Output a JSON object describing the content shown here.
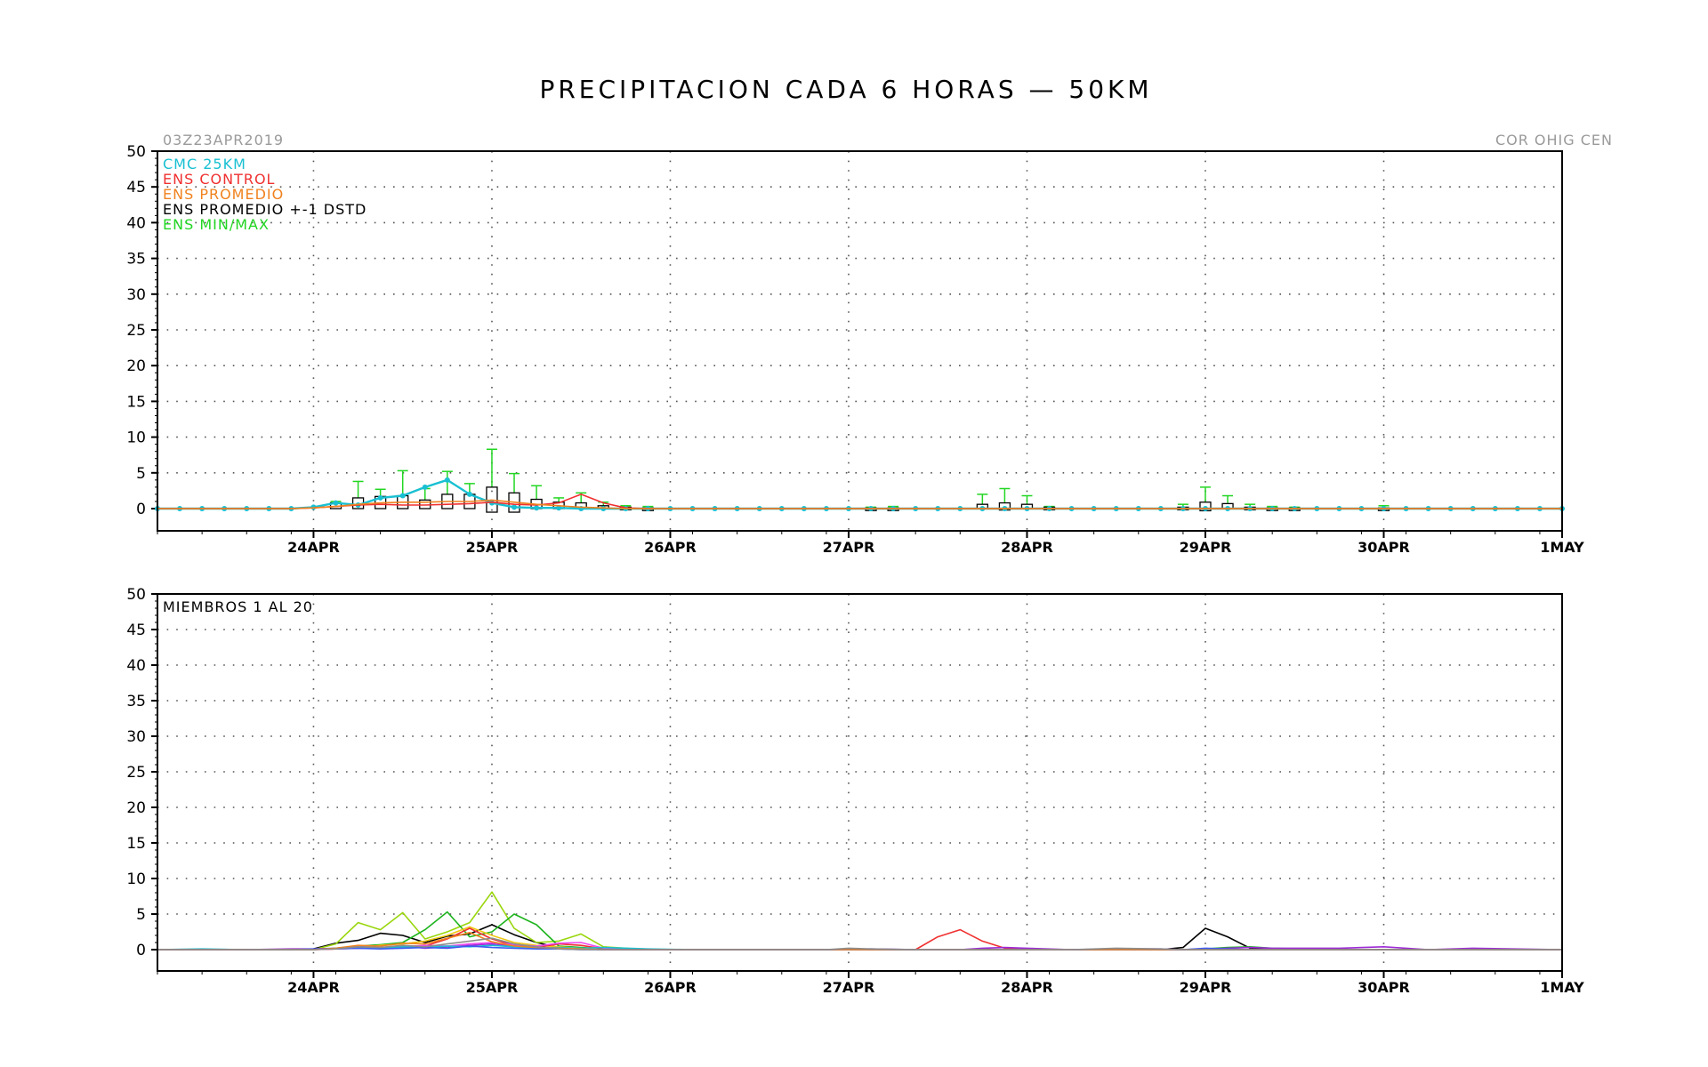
{
  "title": "PRECIPITACION CADA 6 HORAS — 50KM",
  "run_label": "03Z23APR2019",
  "center_label": "COR OHIG CEN",
  "colors": {
    "cmc": "#19c0d2",
    "control": "#f03030",
    "promedio": "#f0821e",
    "dstd": "#000000",
    "minmax": "#22d622",
    "axis": "#000000"
  },
  "chart_data": [
    {
      "type": "line",
      "panel": "ensemble-summary",
      "ylim": [
        -3,
        50
      ],
      "yticks": [
        0,
        5,
        10,
        15,
        20,
        25,
        30,
        35,
        40,
        45,
        50
      ],
      "xlim_hours": [
        0,
        189
      ],
      "xticks": [
        {
          "label": "24APR",
          "hour": 21
        },
        {
          "label": "25APR",
          "hour": 45
        },
        {
          "label": "26APR",
          "hour": 69
        },
        {
          "label": "27APR",
          "hour": 93
        },
        {
          "label": "28APR",
          "hour": 117
        },
        {
          "label": "29APR",
          "hour": 141
        },
        {
          "label": "30APR",
          "hour": 165
        },
        {
          "label": "1MAY",
          "hour": 189
        }
      ],
      "grid": true,
      "legend_position": "top-left",
      "legend": [
        {
          "label": "CMC 25KM",
          "color": "#19c0d2"
        },
        {
          "label": "ENS CONTROL",
          "color": "#f03030"
        },
        {
          "label": "ENS PROMEDIO",
          "color": "#f0821e"
        },
        {
          "label": "ENS PROMEDIO +-1 DSTD",
          "color": "#000000"
        },
        {
          "label": "ENS MIN/MAX",
          "color": "#22d622"
        }
      ],
      "x_hours": [
        0,
        3,
        6,
        9,
        12,
        15,
        18,
        21,
        24,
        27,
        30,
        33,
        36,
        39,
        42,
        45,
        48,
        51,
        54,
        57,
        60,
        63,
        66,
        69,
        72,
        75,
        78,
        81,
        84,
        87,
        90,
        93,
        96,
        99,
        102,
        105,
        108,
        111,
        114,
        117,
        120,
        123,
        126,
        129,
        132,
        135,
        138,
        141,
        144,
        147,
        150,
        153,
        156,
        159,
        162,
        165,
        168,
        171,
        174,
        177,
        180,
        183,
        186,
        189
      ],
      "series": [
        {
          "name": "CMC 25KM",
          "color": "#19c0d2",
          "markers": true,
          "values": [
            0,
            0,
            0,
            0,
            0,
            0,
            0,
            0.2,
            0.8,
            0.5,
            1.5,
            1.8,
            3.0,
            4.0,
            2.0,
            0.8,
            0.2,
            0.1,
            0.1,
            0,
            0,
            0,
            0,
            0,
            0,
            0,
            0,
            0,
            0,
            0,
            0,
            0,
            0,
            0,
            0,
            0,
            0,
            0,
            0,
            0,
            0,
            0,
            0,
            0,
            0,
            0,
            0,
            0,
            0,
            0,
            0,
            0,
            0,
            0,
            0,
            0,
            0,
            0,
            0,
            0,
            0,
            0,
            0,
            0
          ]
        },
        {
          "name": "ENS CONTROL",
          "color": "#f03030",
          "markers": false,
          "values": [
            0,
            0,
            0,
            0,
            0,
            0,
            0,
            0.1,
            0.3,
            0.5,
            0.6,
            0.5,
            0.5,
            0.6,
            0.7,
            0.9,
            0.6,
            0.5,
            0.8,
            2.0,
            0.8,
            0.1,
            0,
            0,
            0,
            0,
            0,
            0,
            0,
            0,
            0,
            0,
            0,
            0,
            0,
            0,
            0,
            0,
            0,
            0,
            0,
            0,
            0,
            0,
            0,
            0,
            0,
            0,
            0,
            0,
            0,
            0,
            0,
            0,
            0,
            0,
            0,
            0,
            0,
            0,
            0,
            0,
            0,
            0
          ]
        },
        {
          "name": "ENS PROMEDIO",
          "color": "#f0821e",
          "markers": false,
          "values": [
            0,
            0,
            0,
            0,
            0,
            0,
            0,
            0.1,
            0.3,
            0.6,
            0.8,
            0.9,
            0.9,
            1.0,
            1.0,
            1.2,
            0.9,
            0.6,
            0.4,
            0.2,
            0.1,
            0,
            0,
            0,
            0,
            0,
            0,
            0,
            0,
            0,
            0,
            0,
            0,
            0,
            0,
            0,
            0,
            0,
            0,
            0,
            0,
            0,
            0,
            0,
            0,
            0,
            0,
            0,
            0,
            0,
            0,
            0,
            0,
            0,
            0,
            0,
            0,
            0,
            0,
            0,
            0,
            0,
            0,
            0
          ]
        }
      ],
      "boxes": [
        {
          "hour": 24,
          "low": 0,
          "high": 0.8,
          "max": 1.0
        },
        {
          "hour": 27,
          "low": 0,
          "high": 1.5,
          "max": 3.8
        },
        {
          "hour": 30,
          "low": 0,
          "high": 1.7,
          "max": 2.7
        },
        {
          "hour": 33,
          "low": 0,
          "high": 1.8,
          "max": 5.3
        },
        {
          "hour": 36,
          "low": 0,
          "high": 1.2,
          "max": 2.8
        },
        {
          "hour": 39,
          "low": 0,
          "high": 2.0,
          "max": 5.2
        },
        {
          "hour": 42,
          "low": 0,
          "high": 2.0,
          "max": 3.5
        },
        {
          "hour": 45,
          "low": -0.5,
          "high": 3.0,
          "max": 8.3
        },
        {
          "hour": 48,
          "low": -0.5,
          "high": 2.2,
          "max": 4.9
        },
        {
          "hour": 51,
          "low": 0,
          "high": 1.3,
          "max": 3.2
        },
        {
          "hour": 54,
          "low": 0,
          "high": 0.9,
          "max": 1.5
        },
        {
          "hour": 57,
          "low": 0,
          "high": 0.8,
          "max": 2.2
        },
        {
          "hour": 60,
          "low": 0,
          "high": 0.4,
          "max": 0.9
        },
        {
          "hour": 63,
          "low": 0,
          "high": 0.2,
          "max": 0.4
        },
        {
          "hour": 66,
          "low": 0,
          "high": 0.1,
          "max": 0.3
        },
        {
          "hour": 96,
          "low": 0,
          "high": 0.1,
          "max": 0.2
        },
        {
          "hour": 99,
          "low": 0,
          "high": 0.1,
          "max": 0.3
        },
        {
          "hour": 111,
          "low": 0,
          "high": 0.6,
          "max": 2.0
        },
        {
          "hour": 114,
          "low": -0.2,
          "high": 0.8,
          "max": 2.8
        },
        {
          "hour": 117,
          "low": 0,
          "high": 0.6,
          "max": 1.8
        },
        {
          "hour": 120,
          "low": 0,
          "high": 0.2,
          "max": 0.3
        },
        {
          "hour": 138,
          "low": 0,
          "high": 0.2,
          "max": 0.6
        },
        {
          "hour": 141,
          "low": -0.3,
          "high": 0.9,
          "max": 3.0
        },
        {
          "hour": 144,
          "low": 0,
          "high": 0.7,
          "max": 1.8
        },
        {
          "hour": 147,
          "low": 0,
          "high": 0.2,
          "max": 0.6
        },
        {
          "hour": 150,
          "low": 0,
          "high": 0.1,
          "max": 0.3
        },
        {
          "hour": 153,
          "low": 0,
          "high": 0.1,
          "max": 0.2
        },
        {
          "hour": 165,
          "low": 0,
          "high": 0.1,
          "max": 0.4
        }
      ]
    },
    {
      "type": "line",
      "panel": "members",
      "annotation": "MIEMBROS 1 AL 20",
      "ylim": [
        -3,
        50
      ],
      "yticks": [
        0,
        5,
        10,
        15,
        20,
        25,
        30,
        35,
        40,
        45,
        50
      ],
      "xlim_hours": [
        0,
        189
      ],
      "xticks": [
        {
          "label": "24APR",
          "hour": 21
        },
        {
          "label": "25APR",
          "hour": 45
        },
        {
          "label": "26APR",
          "hour": 69
        },
        {
          "label": "27APR",
          "hour": 93
        },
        {
          "label": "28APR",
          "hour": 117
        },
        {
          "label": "29APR",
          "hour": 141
        },
        {
          "label": "30APR",
          "hour": 165
        },
        {
          "label": "1MAY",
          "hour": 189
        }
      ],
      "grid": true,
      "x_hours": [
        0,
        6,
        12,
        18,
        21,
        24,
        27,
        30,
        33,
        36,
        39,
        42,
        45,
        48,
        51,
        54,
        57,
        60,
        66,
        72,
        90,
        93,
        96,
        102,
        105,
        108,
        111,
        114,
        117,
        123,
        129,
        135,
        138,
        141,
        144,
        147,
        150,
        159,
        165,
        171,
        177,
        189
      ],
      "series": [
        {
          "color": "#000000",
          "values": [
            0,
            0,
            0,
            0,
            0.1,
            0.9,
            1.3,
            2.3,
            2.0,
            1.0,
            1.9,
            2.2,
            3.5,
            2.1,
            1.0,
            0.3,
            0.1,
            0,
            0,
            0,
            0,
            0,
            0,
            0,
            0,
            0,
            0,
            0,
            0,
            0,
            0,
            0,
            0.3,
            3.0,
            1.8,
            0.2,
            0,
            0,
            0,
            0,
            0,
            0
          ]
        },
        {
          "color": "#99d60c",
          "values": [
            0,
            0,
            0,
            0,
            0,
            0.8,
            3.8,
            2.8,
            5.2,
            1.5,
            2.5,
            3.8,
            8.1,
            3.0,
            1.0,
            1.2,
            2.2,
            0.4,
            0,
            0,
            0,
            0,
            0,
            0,
            0,
            0,
            0,
            0,
            0,
            0,
            0,
            0,
            0,
            0,
            0,
            0,
            0,
            0,
            0,
            0,
            0,
            0
          ]
        },
        {
          "color": "#1eb41e",
          "values": [
            0,
            0,
            0,
            0,
            0,
            0.2,
            0.5,
            0.7,
            1.0,
            2.8,
            5.3,
            1.8,
            2.5,
            5.0,
            3.5,
            0.5,
            0.3,
            0.1,
            0,
            0,
            0,
            0,
            0,
            0,
            0,
            0,
            0,
            0,
            0,
            0,
            0,
            0,
            0,
            0.1,
            0.3,
            0.4,
            0.2,
            0,
            0,
            0,
            0,
            0
          ]
        },
        {
          "color": "#f0c814",
          "values": [
            0,
            0,
            0,
            0,
            0,
            0.1,
            0.3,
            0.6,
            0.8,
            1.2,
            2.0,
            3.2,
            2.0,
            1.0,
            0.6,
            0.4,
            0.2,
            0.1,
            0,
            0,
            0,
            0,
            0,
            0,
            0,
            0,
            0,
            0,
            0,
            0,
            0,
            0,
            0,
            0,
            0,
            0,
            0,
            0,
            0,
            0,
            0,
            0
          ]
        },
        {
          "color": "#f03030",
          "values": [
            0,
            0,
            0,
            0,
            0,
            0.1,
            0.2,
            0.2,
            0.3,
            0.5,
            1.5,
            3.0,
            1.5,
            0.6,
            0.3,
            0.8,
            0.6,
            0.1,
            0,
            0,
            0,
            0,
            0,
            0,
            1.8,
            2.8,
            1.2,
            0.2,
            0,
            0,
            0,
            0,
            0,
            0,
            0,
            0,
            0,
            0,
            0,
            0,
            0,
            0
          ]
        },
        {
          "color": "#9d2ad6",
          "values": [
            0,
            0,
            0,
            0.1,
            0.1,
            0.2,
            0.4,
            0.3,
            0.5,
            0.2,
            0.4,
            0.6,
            0.8,
            0.5,
            0.3,
            0.2,
            0.1,
            0,
            0,
            0,
            0,
            0,
            0.1,
            0,
            0,
            0,
            0.2,
            0.3,
            0.2,
            0,
            0.1,
            0.1,
            0,
            0.1,
            0.2,
            0.3,
            0.2,
            0.2,
            0.4,
            0,
            0.2,
            0
          ]
        },
        {
          "color": "#ee46ee",
          "values": [
            0,
            0,
            0,
            0,
            0,
            0.1,
            0.3,
            0.2,
            0.4,
            0.6,
            0.5,
            0.8,
            1.0,
            0.7,
            0.5,
            0.9,
            1.0,
            0.2,
            0,
            0,
            0,
            0,
            0,
            0,
            0,
            0,
            0,
            0,
            0,
            0,
            0,
            0,
            0,
            0,
            0,
            0,
            0,
            0,
            0,
            0,
            0,
            0
          ]
        },
        {
          "color": "#19c0d2",
          "values": [
            0,
            0.1,
            0,
            0,
            0,
            0.2,
            0.3,
            0.2,
            0.4,
            0.3,
            0.5,
            0.4,
            0.6,
            0.4,
            0.2,
            0.3,
            0.2,
            0.3,
            0.1,
            0,
            0,
            0,
            0,
            0,
            0,
            0,
            0,
            0,
            0,
            0,
            0,
            0,
            0,
            0,
            0,
            0,
            0,
            0,
            0,
            0,
            0,
            0
          ]
        },
        {
          "color": "#3c5af0",
          "values": [
            0,
            0,
            0,
            0,
            0.1,
            0.1,
            0.2,
            0.1,
            0.2,
            0.3,
            0.2,
            0.5,
            0.3,
            0.2,
            0.1,
            0.1,
            0,
            0,
            0,
            0,
            0,
            0,
            0,
            0,
            0,
            0,
            0,
            0,
            0,
            0,
            0,
            0,
            0,
            0.2,
            0.1,
            0,
            0,
            0,
            0,
            0,
            0,
            0
          ]
        },
        {
          "color": "#f0821e",
          "values": [
            0,
            0,
            0,
            0,
            0,
            0.2,
            0.6,
            0.5,
            0.9,
            0.8,
            1.6,
            2.4,
            1.1,
            0.5,
            0.3,
            0.2,
            0.1,
            0,
            0,
            0,
            0,
            0,
            0,
            0,
            0,
            0,
            0,
            0,
            0,
            0,
            0,
            0,
            0,
            0,
            0,
            0,
            0,
            0,
            0,
            0,
            0,
            0
          ]
        },
        {
          "color": "#8c8c8c",
          "values": [
            0,
            0,
            0,
            0,
            0,
            0.1,
            0.4,
            0.3,
            0.6,
            0.4,
            0.8,
            1.2,
            1.6,
            0.8,
            0.4,
            0.1,
            0,
            0,
            0,
            0,
            0,
            0.2,
            0.1,
            0,
            0,
            0,
            0,
            0,
            0,
            0,
            0.2,
            0.1,
            0,
            0,
            0,
            0,
            0,
            0,
            0,
            0,
            0,
            0
          ]
        }
      ]
    }
  ]
}
